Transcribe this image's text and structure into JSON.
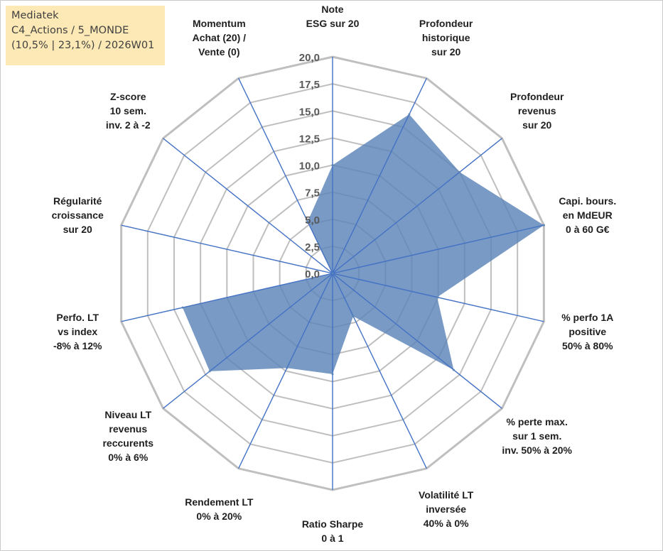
{
  "title_box": {
    "line1": "Mediatek",
    "line2": "C4_Actions / 5_MONDE",
    "line3": "(10,5% | 23,1%) / 2026W01"
  },
  "colors": {
    "fill": "#5b84b8",
    "axis": "#4472c4",
    "grid": "#bfbfbf",
    "title_bg": "#fde9b6"
  },
  "chart_data": {
    "type": "radar",
    "rmin": 0,
    "rmax": 20,
    "tick_step": 2.5,
    "tick_labels": [
      "0,0",
      "2,5",
      "5,0",
      "7,5",
      "10,0",
      "12,5",
      "15,0",
      "17,5",
      "20,0"
    ],
    "axes": [
      {
        "label": [
          "Note",
          "ESG sur 20"
        ]
      },
      {
        "label": [
          "Profondeur",
          "historique",
          "sur 20"
        ]
      },
      {
        "label": [
          "Profondeur",
          "revenus",
          "sur 20"
        ]
      },
      {
        "label": [
          "Capi. bours.",
          "en MdEUR",
          "0 à 60 G€"
        ]
      },
      {
        "label": [
          "% perfo 1A",
          "positive",
          "50% à 80%"
        ]
      },
      {
        "label": [
          "% perte max.",
          "sur 1 sem.",
          "inv. 50% à 20%"
        ]
      },
      {
        "label": [
          "Volatilité LT",
          "inversée",
          "40% à 0%"
        ]
      },
      {
        "label": [
          "Ratio Sharpe",
          "0 à 1"
        ]
      },
      {
        "label": [
          "Rendement LT",
          "0% à 20%"
        ]
      },
      {
        "label": [
          "Niveau LT",
          "revenus",
          "reccurents",
          "0% à 6%"
        ]
      },
      {
        "label": [
          "Perfo. LT",
          "vs index",
          "-8% à 12%"
        ]
      },
      {
        "label": [
          "Régularité",
          "croissance",
          "sur 20"
        ]
      },
      {
        "label": [
          "Z-score",
          "10 sem.",
          "inv. 2 à -2"
        ]
      },
      {
        "label": [
          "Momentum",
          "Achat (20) /",
          "Vente (0)"
        ]
      }
    ],
    "series": [
      {
        "name": "Mediatek",
        "values": [
          10.0,
          16.3,
          15.0,
          20.0,
          9.9,
          14.3,
          4.4,
          9.3,
          9.7,
          14.5,
          14.2,
          0.0,
          0.0,
          5.3
        ]
      }
    ]
  }
}
